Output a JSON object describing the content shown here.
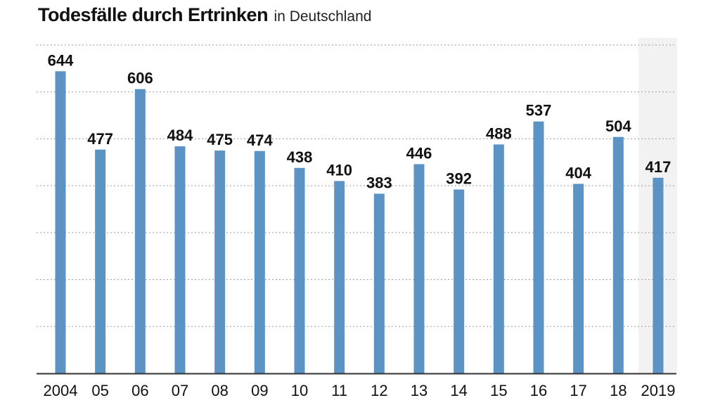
{
  "chart_data": {
    "type": "bar",
    "title": "Todesfälle durch Ertrinken",
    "subtitle": "in Deutschland",
    "xlabel": "",
    "ylabel": "",
    "categories": [
      "2004",
      "05",
      "06",
      "07",
      "08",
      "09",
      "10",
      "11",
      "12",
      "13",
      "14",
      "15",
      "16",
      "17",
      "18",
      "2019"
    ],
    "values": [
      644,
      477,
      606,
      484,
      475,
      474,
      438,
      410,
      383,
      446,
      392,
      488,
      537,
      404,
      504,
      417
    ],
    "ylim": [
      0,
      700
    ],
    "grid": true,
    "gridlines": [
      100,
      200,
      300,
      400,
      500,
      600,
      700
    ],
    "highlighted_category": "2019",
    "legend": "none",
    "colors": {
      "bar": "#5b93c4",
      "highlight_background": "#f2f2f2",
      "grid": "#9a9a9a",
      "axis": "#333333",
      "text": "#111111"
    }
  }
}
